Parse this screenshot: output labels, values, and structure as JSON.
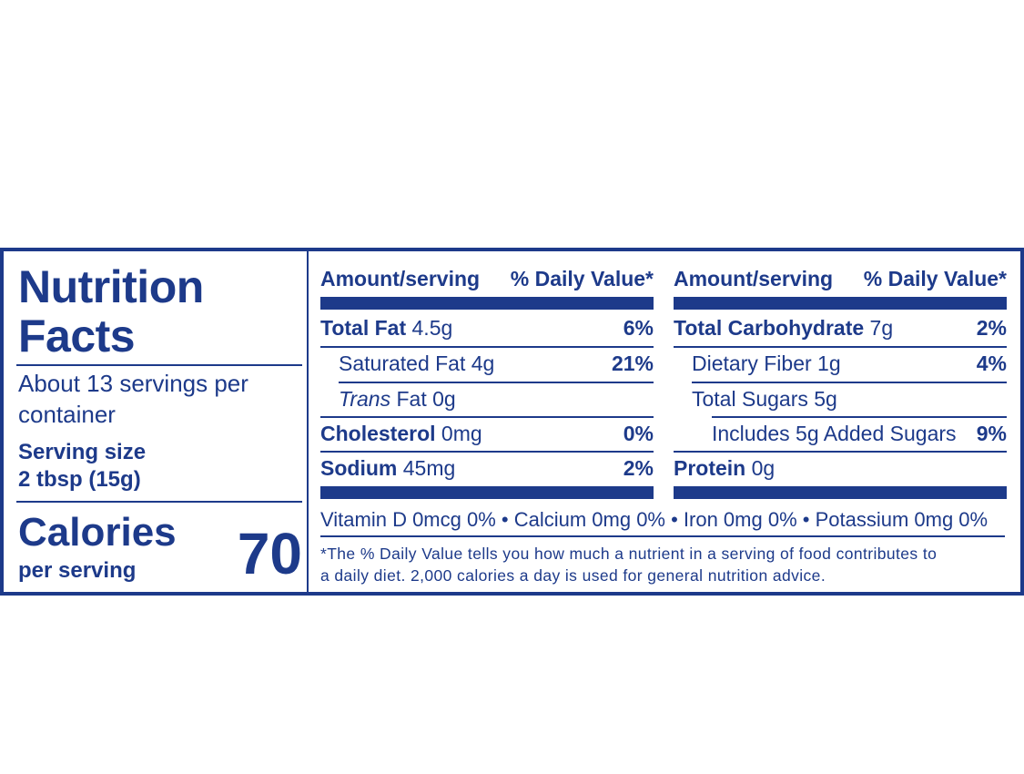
{
  "title": "Nutrition\nFacts",
  "servings": "About 13 servings per container",
  "serving_size_label": "Serving size",
  "serving_size_value": "2 tbsp (15g)",
  "calories_label": "Calories",
  "calories_sub": "per serving",
  "calories_value": "70",
  "column_header": {
    "amount": "Amount/serving",
    "dv": "% Daily Value*"
  },
  "left_rows": [
    {
      "bold": "Total Fat",
      "amount": "4.5g",
      "dv": "6%"
    },
    {
      "bold": "",
      "amount": "Saturated Fat 4g",
      "dv": "21%"
    },
    {
      "italic": "Trans",
      "amount": "Fat 0g",
      "dv": ""
    },
    {
      "bold": "Cholesterol",
      "amount": "0mg",
      "dv": "0%"
    },
    {
      "bold": "Sodium",
      "amount": "45mg",
      "dv": "2%"
    }
  ],
  "right_rows": [
    {
      "bold": "Total Carbohydrate",
      "amount": "7g",
      "dv": "2%"
    },
    {
      "bold": "",
      "amount": "Dietary Fiber 1g",
      "dv": "4%"
    },
    {
      "bold": "",
      "amount": "Total Sugars 5g",
      "dv": ""
    },
    {
      "bold": "",
      "amount": "Includes 5g Added Sugars",
      "dv": "9%"
    },
    {
      "bold": "Protein",
      "amount": "0g",
      "dv": ""
    }
  ],
  "vitamins": "Vitamin D 0mcg 0%  •  Calcium 0mg 0%  •  Iron 0mg 0%  •  Potassium 0mg 0%",
  "footnote_line1": "*The % Daily Value tells you how much a nutrient in a serving of food contributes to",
  "footnote_line2": " a daily diet. 2,000 calories a day is used for general nutrition advice."
}
